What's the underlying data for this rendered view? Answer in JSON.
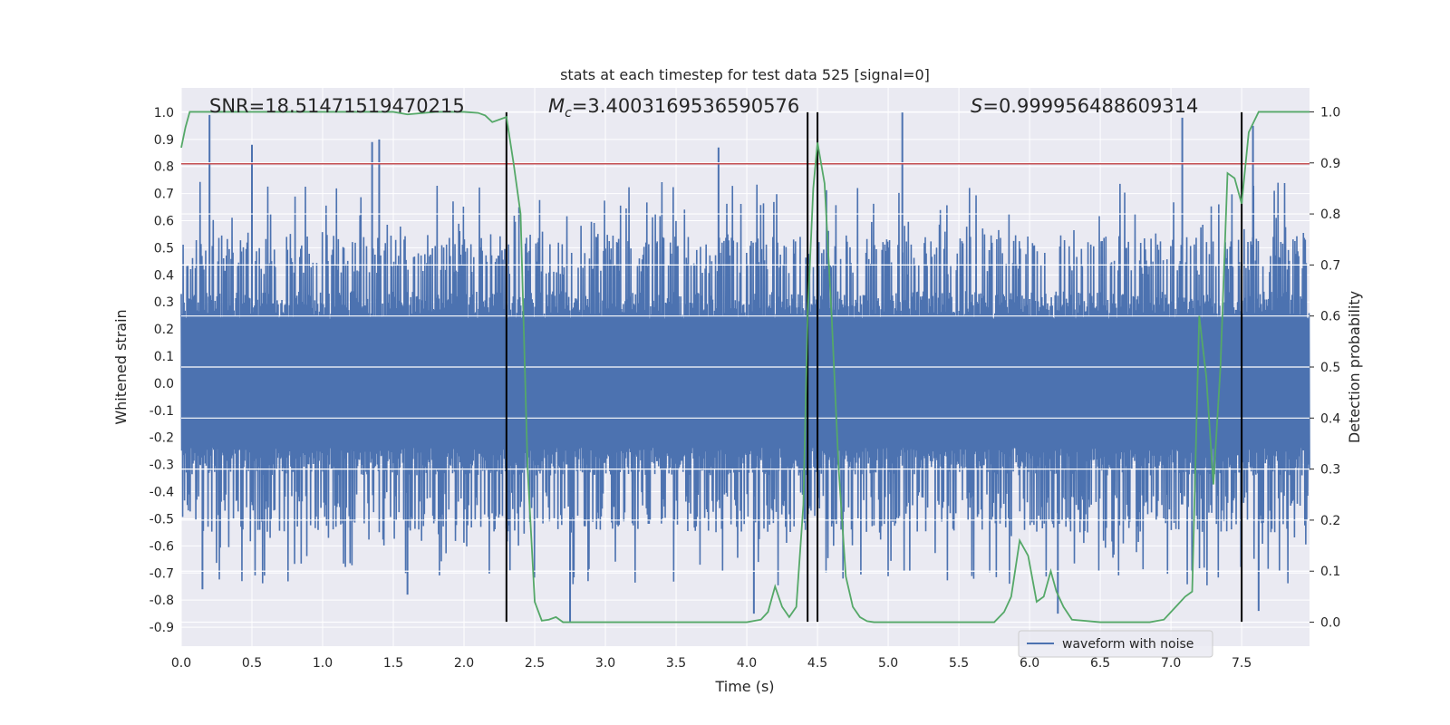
{
  "chart_data": {
    "type": "line",
    "title": "stats at each timestep for test data 525 [signal=0]",
    "xlabel": "Time (s)",
    "ylabel": "Whitened strain",
    "y2label": "Detection probability",
    "xlim": [
      0.0,
      7.98
    ],
    "ylim": [
      -0.97,
      1.09
    ],
    "y2lim": [
      -0.047,
      1.047
    ],
    "xticks": [
      0.0,
      0.5,
      1.0,
      1.5,
      2.0,
      2.5,
      3.0,
      3.5,
      4.0,
      4.5,
      5.0,
      5.5,
      6.0,
      6.5,
      7.0,
      7.5
    ],
    "yticks": [
      1.0,
      0.9,
      0.8,
      0.7,
      0.6,
      0.5,
      0.4,
      0.3,
      0.2,
      0.1,
      0.0,
      -0.1,
      -0.2,
      -0.3,
      -0.4,
      -0.5,
      -0.6,
      -0.7,
      -0.8,
      -0.9
    ],
    "y2ticks": [
      0.0,
      0.1,
      0.2,
      0.3,
      0.4,
      0.5,
      0.6,
      0.7,
      0.8,
      0.9,
      1.0
    ],
    "grid": true,
    "legend": {
      "entries": [
        "waveform with noise"
      ],
      "placement": "lower right"
    },
    "annotations": {
      "snr": "SNR=18.51471519470215",
      "mc_symbol": "M",
      "mc_sub": "c",
      "mc_value": "=3.4003169536590576",
      "s_symbol": "S",
      "s_value": "=0.999956488609314"
    },
    "threshold_strain": 0.81,
    "event_markers_x": [
      2.3,
      4.43,
      4.5,
      7.5
    ],
    "event_marker_range": [
      -0.88,
      1.0
    ],
    "strain_envelope": {
      "description": "dense whitened strain with noise, sample count approximated",
      "samples": 2400,
      "core_amplitude": 0.34,
      "max_amplitude": 0.99,
      "min_amplitude": -0.88
    },
    "strain_peaks": [
      {
        "x": 0.2,
        "y": 0.99
      },
      {
        "x": 0.5,
        "y": 0.88
      },
      {
        "x": 1.4,
        "y": 0.9
      },
      {
        "x": 1.35,
        "y": 0.89
      },
      {
        "x": 5.1,
        "y": 1.0
      },
      {
        "x": 7.08,
        "y": 0.98
      },
      {
        "x": 7.58,
        "y": 0.95
      },
      {
        "x": 3.8,
        "y": 0.87
      },
      {
        "x": 2.75,
        "y": -0.88
      },
      {
        "x": 4.05,
        "y": -0.85
      },
      {
        "x": 6.2,
        "y": -0.85
      },
      {
        "x": 7.62,
        "y": -0.84
      },
      {
        "x": 1.6,
        "y": -0.78
      },
      {
        "x": 0.15,
        "y": -0.76
      }
    ],
    "series": [
      {
        "name": "Detection probability",
        "axis": "right",
        "color": "#55a868",
        "x": [
          0.0,
          0.03,
          0.06,
          0.1,
          0.5,
          1.0,
          1.5,
          1.6,
          1.8,
          2.0,
          2.1,
          2.15,
          2.2,
          2.3,
          2.35,
          2.4,
          2.45,
          2.5,
          2.55,
          2.6,
          2.65,
          2.7,
          3.0,
          3.5,
          4.0,
          4.1,
          4.15,
          4.2,
          4.25,
          4.3,
          4.35,
          4.4,
          4.43,
          4.47,
          4.5,
          4.55,
          4.6,
          4.65,
          4.7,
          4.75,
          4.8,
          4.85,
          4.9,
          5.0,
          5.5,
          5.75,
          5.82,
          5.87,
          5.93,
          5.99,
          6.05,
          6.1,
          6.15,
          6.19,
          6.24,
          6.3,
          6.5,
          6.85,
          6.95,
          7.0,
          7.05,
          7.1,
          7.15,
          7.2,
          7.25,
          7.3,
          7.35,
          7.4,
          7.45,
          7.5,
          7.55,
          7.62,
          7.98
        ],
        "values": [
          0.93,
          0.97,
          1.0,
          1.0,
          1.0,
          1.0,
          1.0,
          0.995,
          1.0,
          1.0,
          0.998,
          0.993,
          0.98,
          0.99,
          0.9,
          0.8,
          0.3,
          0.04,
          0.003,
          0.005,
          0.01,
          0.0,
          0.0,
          0.0,
          0.0,
          0.005,
          0.02,
          0.07,
          0.03,
          0.01,
          0.03,
          0.23,
          0.6,
          0.85,
          0.94,
          0.86,
          0.6,
          0.3,
          0.09,
          0.03,
          0.01,
          0.002,
          0.0,
          0.0,
          0.0,
          0.0,
          0.02,
          0.05,
          0.16,
          0.13,
          0.04,
          0.05,
          0.1,
          0.06,
          0.03,
          0.005,
          0.0,
          0.0,
          0.005,
          0.02,
          0.035,
          0.05,
          0.06,
          0.6,
          0.48,
          0.27,
          0.5,
          0.88,
          0.87,
          0.82,
          0.96,
          1.0,
          1.0
        ]
      }
    ]
  }
}
